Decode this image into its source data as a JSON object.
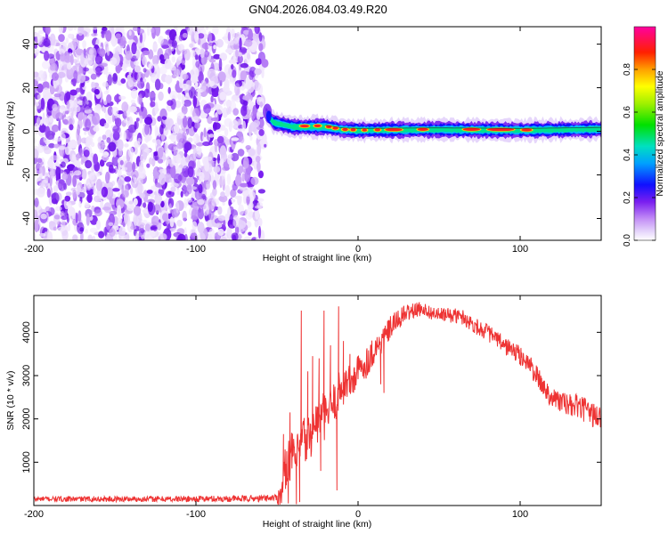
{
  "title": "GN04.2026.084.03.49.R20",
  "colors": {
    "snr_line": "#ee3333",
    "frame": "#000000",
    "background": "#ffffff"
  },
  "chart_data": [
    {
      "type": "heatmap",
      "title": "GN04.2026.084.03.49.R20",
      "xlabel": "Height of straight line (km)",
      "ylabel": "Frequency (Hz)",
      "xlim": [
        -200,
        150
      ],
      "ylim": [
        -50,
        48
      ],
      "x_ticks": [
        -200,
        -100,
        0,
        100
      ],
      "x_tick_labels": [
        "-200",
        "-100",
        "0",
        "100"
      ],
      "y_ticks": [
        -40,
        -20,
        0,
        20,
        40
      ],
      "y_tick_labels": [
        "-40",
        "-20",
        "0",
        "20",
        "40"
      ],
      "grid": false,
      "noise_region": {
        "x_from": -200,
        "x_to": -57,
        "freq_from": -50,
        "freq_to": 48
      },
      "signal_region": {
        "x_from": -57,
        "x_to": 150,
        "center_freq": [
          [
            -57,
            8
          ],
          [
            -52,
            4
          ],
          [
            -40,
            2
          ],
          [
            -20,
            2
          ],
          [
            -10,
            0.8
          ],
          [
            0,
            0.5
          ],
          [
            50,
            0.8
          ],
          [
            100,
            0.5
          ],
          [
            150,
            1
          ]
        ]
      },
      "colorbar": {
        "label": "Normalized spectral amplitude",
        "range": [
          0.0,
          1.0
        ],
        "ticks": [
          0.0,
          0.2,
          0.4,
          0.6,
          0.8
        ],
        "tick_labels": [
          "0.0",
          "0.2",
          "0.4",
          "0.6",
          "0.8"
        ]
      }
    },
    {
      "type": "line",
      "xlabel": "Height of straight line (km)",
      "ylabel": "SNR (10 * v/v)",
      "xlim": [
        -200,
        150
      ],
      "ylim": [
        0,
        4850
      ],
      "x_ticks": [
        -200,
        -100,
        0,
        100
      ],
      "x_tick_labels": [
        "-200",
        "-100",
        "0",
        "100"
      ],
      "y_ticks": [
        1000,
        2000,
        3000,
        4000
      ],
      "y_tick_labels": [
        "1000",
        "2000",
        "3000",
        "4000"
      ],
      "grid": false,
      "series": [
        {
          "name": "SNR",
          "envelope_x": [
            -200,
            -120,
            -60,
            -48,
            -46,
            -44,
            -42,
            -40,
            -38,
            -36,
            -34,
            -32,
            -30,
            -28,
            -26,
            -24,
            -22,
            -20,
            -18,
            -16,
            -14,
            -12,
            -10,
            -8,
            -6,
            -4,
            -2,
            0,
            5,
            10,
            15,
            20,
            25,
            30,
            35,
            40,
            45,
            50,
            55,
            60,
            65,
            70,
            75,
            80,
            85,
            90,
            95,
            100,
            105,
            110,
            115,
            120,
            125,
            130,
            135,
            140,
            145,
            150
          ],
          "envelope_y": [
            150,
            150,
            160,
            200,
            600,
            1000,
            1100,
            1200,
            1000,
            1300,
            1600,
            1400,
            1600,
            1800,
            1900,
            2000,
            2100,
            2000,
            2200,
            2300,
            2400,
            2600,
            2700,
            2800,
            2900,
            2800,
            3000,
            3100,
            3300,
            3600,
            3800,
            4100,
            4300,
            4450,
            4500,
            4550,
            4450,
            4400,
            4400,
            4380,
            4350,
            4200,
            4100,
            4000,
            3850,
            3700,
            3600,
            3450,
            3300,
            3000,
            2700,
            2500,
            2400,
            2300,
            2300,
            2200,
            2100,
            2000
          ],
          "noise_amplitude": [
            [
              -200,
              60
            ],
            [
              -50,
              80
            ],
            [
              -48,
              500
            ],
            [
              -30,
              600
            ],
            [
              0,
              400
            ],
            [
              40,
              150
            ],
            [
              80,
              200
            ],
            [
              150,
              300
            ]
          ],
          "spikes": [
            {
              "x": -46,
              "y": 1650
            },
            {
              "x": -42,
              "y": 2150
            },
            {
              "x": -40,
              "y": 1400
            },
            {
              "x": -35,
              "y": 4500
            },
            {
              "x": -31,
              "y": 3100
            },
            {
              "x": -28,
              "y": 3450
            },
            {
              "x": -24,
              "y": 3400
            },
            {
              "x": -21,
              "y": 4500
            },
            {
              "x": -17,
              "y": 3700
            },
            {
              "x": -12,
              "y": 4600
            },
            {
              "x": -9,
              "y": 3800
            },
            {
              "x": -5,
              "y": 3500
            },
            {
              "x": -43,
              "y": 50
            },
            {
              "x": -38,
              "y": 30
            },
            {
              "x": -36,
              "y": 80
            },
            {
              "x": -23,
              "y": 800
            },
            {
              "x": -13,
              "y": 350
            },
            {
              "x": 14,
              "y": 2800
            },
            {
              "x": 16,
              "y": 2600
            }
          ]
        }
      ]
    }
  ]
}
